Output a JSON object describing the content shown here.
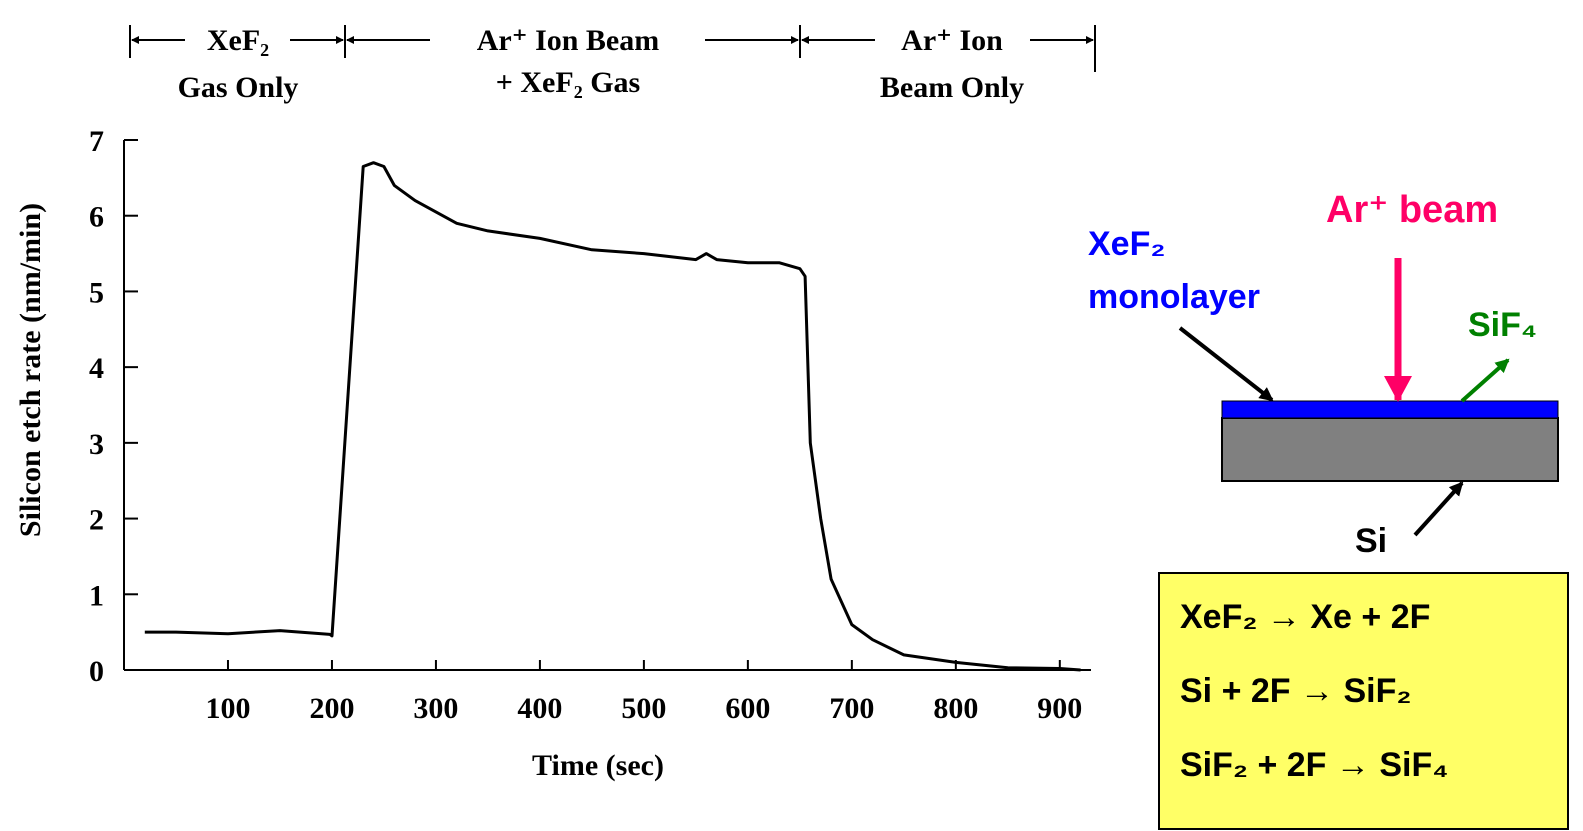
{
  "chart_data": {
    "type": "line",
    "regions": [
      {
        "top": "XeF₂",
        "bottom": "Gas Only"
      },
      {
        "top": "Ar⁺ Ion Beam",
        "bottom": "+ XeF₂ Gas"
      },
      {
        "top": "Ar⁺ Ion",
        "bottom": "Beam Only"
      }
    ],
    "y_label": "Silicon etch rate (nm/min)",
    "x_label": "Time (sec)",
    "x": [
      20,
      50,
      100,
      150,
      198,
      200,
      230,
      240,
      250,
      260,
      280,
      300,
      320,
      350,
      400,
      450,
      500,
      550,
      560,
      570,
      600,
      630,
      650,
      655,
      660,
      670,
      680,
      700,
      720,
      750,
      800,
      850,
      900,
      920
    ],
    "values": [
      0.5,
      0.5,
      0.48,
      0.52,
      0.47,
      0.45,
      6.65,
      6.7,
      6.65,
      6.4,
      6.2,
      6.05,
      5.9,
      5.8,
      5.7,
      5.55,
      5.5,
      5.42,
      5.5,
      5.42,
      5.38,
      5.38,
      5.3,
      5.2,
      3.0,
      2.0,
      1.2,
      0.6,
      0.4,
      0.2,
      0.1,
      0.03,
      0.02,
      0
    ],
    "color": "#000000",
    "xlim": [
      0,
      930
    ],
    "ylim": [
      0,
      7
    ],
    "xticks": [
      100,
      200,
      300,
      400,
      500,
      600,
      700,
      800,
      900
    ],
    "yticks": [
      0,
      1,
      2,
      3,
      4,
      5,
      6,
      7
    ]
  },
  "diagram": {
    "layer_label_1": "XeF₂",
    "layer_label_2": "monolayer",
    "beam_label": "Ar⁺ beam",
    "product_label": "SiF₄",
    "substrate_label": "Si",
    "equations": [
      "XeF₂ → Xe + 2F",
      "Si + 2F → SiF₂",
      "SiF₂ + 2F → SiF₄"
    ]
  }
}
